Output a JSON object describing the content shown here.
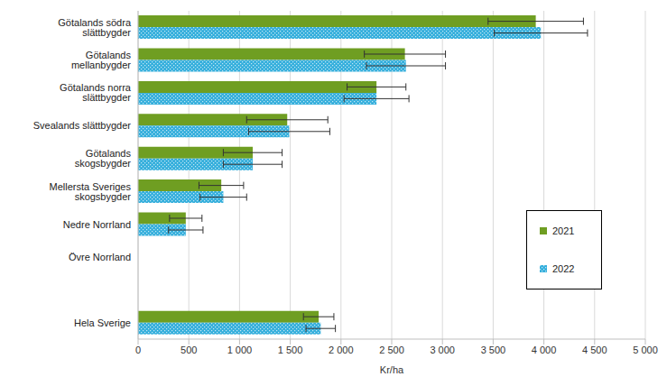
{
  "chart_data": {
    "type": "bar",
    "orientation": "horizontal",
    "x_label": "Kr/ha",
    "categories": [
      "Götalands södra slättbygder",
      "Götalands mellanbygder",
      "Götalands norra slättbygder",
      "Svealands slättbygder",
      "Götalands skogsbygder",
      "Mellersta Sveriges skogsbygder",
      "Nedre Norrland",
      "Övre Norrland",
      null,
      "Hela Sverige"
    ],
    "series": [
      {
        "name": "2021",
        "color": "#6f9e22",
        "values": [
          3920,
          2630,
          2350,
          1470,
          1130,
          820,
          470,
          null,
          null,
          1780
        ],
        "errors": [
          470,
          400,
          290,
          400,
          290,
          220,
          160,
          null,
          null,
          150
        ]
      },
      {
        "name": "2022",
        "color": "#35afdc",
        "marker": "hatch",
        "values": [
          3970,
          2640,
          2350,
          1490,
          1130,
          840,
          470,
          null,
          null,
          1800
        ],
        "errors": [
          460,
          390,
          320,
          400,
          290,
          230,
          170,
          null,
          null,
          145
        ]
      }
    ],
    "xlim": [
      0,
      5000
    ],
    "xticks": [
      0,
      500,
      {
        "value": 1000,
        "label": "1 000"
      },
      {
        "value": 1500,
        "label": "1 500"
      },
      {
        "value": 2000,
        "label": "2 000"
      },
      {
        "value": 2500,
        "label": "2 500"
      },
      {
        "value": 3000,
        "label": "3 000"
      },
      {
        "value": 3500,
        "label": "3 500"
      },
      {
        "value": 4000,
        "label": "4 000"
      },
      {
        "value": 4500,
        "label": "4 500"
      },
      {
        "value": 5000,
        "label": "5 000"
      }
    ],
    "grid": true,
    "legend": "right"
  }
}
